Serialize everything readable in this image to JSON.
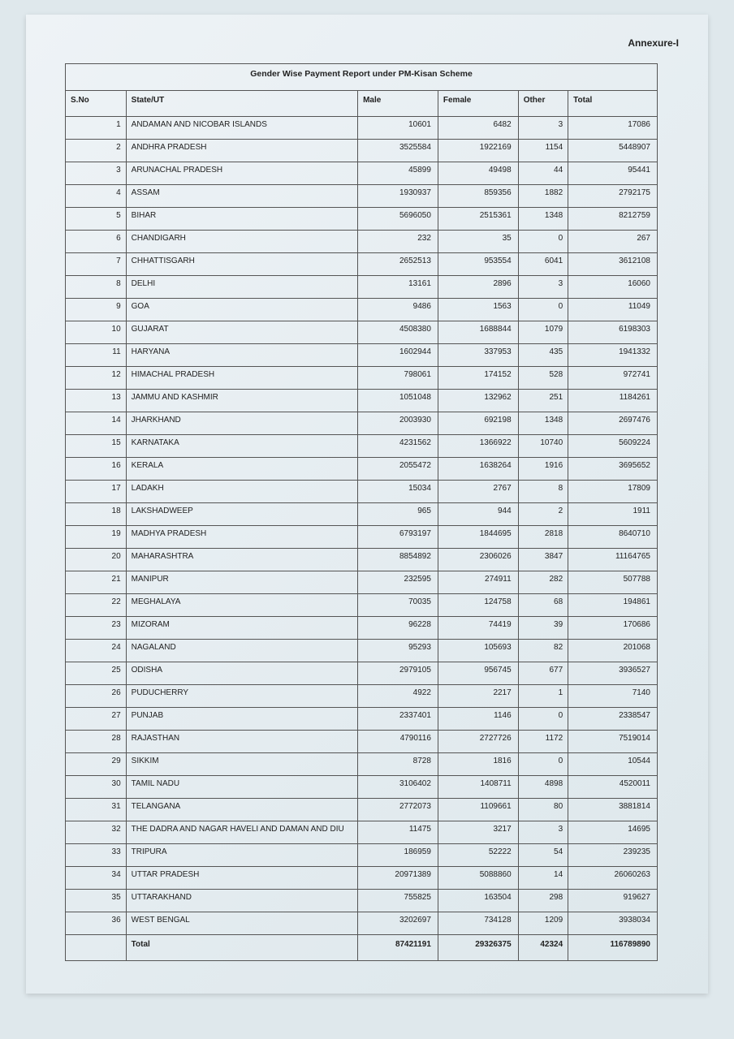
{
  "annexure": "Annexure-I",
  "table": {
    "title": "Gender Wise Payment Report under PM-Kisan Scheme",
    "headers": {
      "sno": "S.No",
      "state": "State/UT",
      "male": "Male",
      "female": "Female",
      "other": "Other",
      "total": "Total"
    },
    "rows": [
      {
        "sno": "1",
        "state": "ANDAMAN AND NICOBAR ISLANDS",
        "male": "10601",
        "female": "6482",
        "other": "3",
        "total": "17086"
      },
      {
        "sno": "2",
        "state": "ANDHRA PRADESH",
        "male": "3525584",
        "female": "1922169",
        "other": "1154",
        "total": "5448907"
      },
      {
        "sno": "3",
        "state": "ARUNACHAL PRADESH",
        "male": "45899",
        "female": "49498",
        "other": "44",
        "total": "95441"
      },
      {
        "sno": "4",
        "state": "ASSAM",
        "male": "1930937",
        "female": "859356",
        "other": "1882",
        "total": "2792175"
      },
      {
        "sno": "5",
        "state": "BIHAR",
        "male": "5696050",
        "female": "2515361",
        "other": "1348",
        "total": "8212759"
      },
      {
        "sno": "6",
        "state": "CHANDIGARH",
        "male": "232",
        "female": "35",
        "other": "0",
        "total": "267"
      },
      {
        "sno": "7",
        "state": "CHHATTISGARH",
        "male": "2652513",
        "female": "953554",
        "other": "6041",
        "total": "3612108"
      },
      {
        "sno": "8",
        "state": "DELHI",
        "male": "13161",
        "female": "2896",
        "other": "3",
        "total": "16060"
      },
      {
        "sno": "9",
        "state": "GOA",
        "male": "9486",
        "female": "1563",
        "other": "0",
        "total": "11049"
      },
      {
        "sno": "10",
        "state": "GUJARAT",
        "male": "4508380",
        "female": "1688844",
        "other": "1079",
        "total": "6198303"
      },
      {
        "sno": "11",
        "state": "HARYANA",
        "male": "1602944",
        "female": "337953",
        "other": "435",
        "total": "1941332"
      },
      {
        "sno": "12",
        "state": "HIMACHAL PRADESH",
        "male": "798061",
        "female": "174152",
        "other": "528",
        "total": "972741"
      },
      {
        "sno": "13",
        "state": "JAMMU AND KASHMIR",
        "male": "1051048",
        "female": "132962",
        "other": "251",
        "total": "1184261"
      },
      {
        "sno": "14",
        "state": "JHARKHAND",
        "male": "2003930",
        "female": "692198",
        "other": "1348",
        "total": "2697476"
      },
      {
        "sno": "15",
        "state": "KARNATAKA",
        "male": "4231562",
        "female": "1366922",
        "other": "10740",
        "total": "5609224"
      },
      {
        "sno": "16",
        "state": "KERALA",
        "male": "2055472",
        "female": "1638264",
        "other": "1916",
        "total": "3695652"
      },
      {
        "sno": "17",
        "state": "LADAKH",
        "male": "15034",
        "female": "2767",
        "other": "8",
        "total": "17809"
      },
      {
        "sno": "18",
        "state": "LAKSHADWEEP",
        "male": "965",
        "female": "944",
        "other": "2",
        "total": "1911"
      },
      {
        "sno": "19",
        "state": "MADHYA PRADESH",
        "male": "6793197",
        "female": "1844695",
        "other": "2818",
        "total": "8640710"
      },
      {
        "sno": "20",
        "state": "MAHARASHTRA",
        "male": "8854892",
        "female": "2306026",
        "other": "3847",
        "total": "11164765"
      },
      {
        "sno": "21",
        "state": "MANIPUR",
        "male": "232595",
        "female": "274911",
        "other": "282",
        "total": "507788"
      },
      {
        "sno": "22",
        "state": "MEGHALAYA",
        "male": "70035",
        "female": "124758",
        "other": "68",
        "total": "194861"
      },
      {
        "sno": "23",
        "state": "MIZORAM",
        "male": "96228",
        "female": "74419",
        "other": "39",
        "total": "170686"
      },
      {
        "sno": "24",
        "state": "NAGALAND",
        "male": "95293",
        "female": "105693",
        "other": "82",
        "total": "201068"
      },
      {
        "sno": "25",
        "state": "ODISHA",
        "male": "2979105",
        "female": "956745",
        "other": "677",
        "total": "3936527"
      },
      {
        "sno": "26",
        "state": "PUDUCHERRY",
        "male": "4922",
        "female": "2217",
        "other": "1",
        "total": "7140"
      },
      {
        "sno": "27",
        "state": "PUNJAB",
        "male": "2337401",
        "female": "1146",
        "other": "0",
        "total": "2338547"
      },
      {
        "sno": "28",
        "state": "RAJASTHAN",
        "male": "4790116",
        "female": "2727726",
        "other": "1172",
        "total": "7519014"
      },
      {
        "sno": "29",
        "state": "SIKKIM",
        "male": "8728",
        "female": "1816",
        "other": "0",
        "total": "10544"
      },
      {
        "sno": "30",
        "state": "TAMIL NADU",
        "male": "3106402",
        "female": "1408711",
        "other": "4898",
        "total": "4520011"
      },
      {
        "sno": "31",
        "state": "TELANGANA",
        "male": "2772073",
        "female": "1109661",
        "other": "80",
        "total": "3881814"
      },
      {
        "sno": "32",
        "state": "THE DADRA AND NAGAR HAVELI AND DAMAN AND DIU",
        "male": "11475",
        "female": "3217",
        "other": "3",
        "total": "14695"
      },
      {
        "sno": "33",
        "state": "TRIPURA",
        "male": "186959",
        "female": "52222",
        "other": "54",
        "total": "239235"
      },
      {
        "sno": "34",
        "state": "UTTAR PRADESH",
        "male": "20971389",
        "female": "5088860",
        "other": "14",
        "total": "26060263"
      },
      {
        "sno": "35",
        "state": "UTTARAKHAND",
        "male": "755825",
        "female": "163504",
        "other": "298",
        "total": "919627"
      },
      {
        "sno": "36",
        "state": "WEST BENGAL",
        "male": "3202697",
        "female": "734128",
        "other": "1209",
        "total": "3938034"
      }
    ],
    "totals": {
      "label": "Total",
      "male": "87421191",
      "female": "29326375",
      "other": "42324",
      "total": "116789890"
    }
  }
}
